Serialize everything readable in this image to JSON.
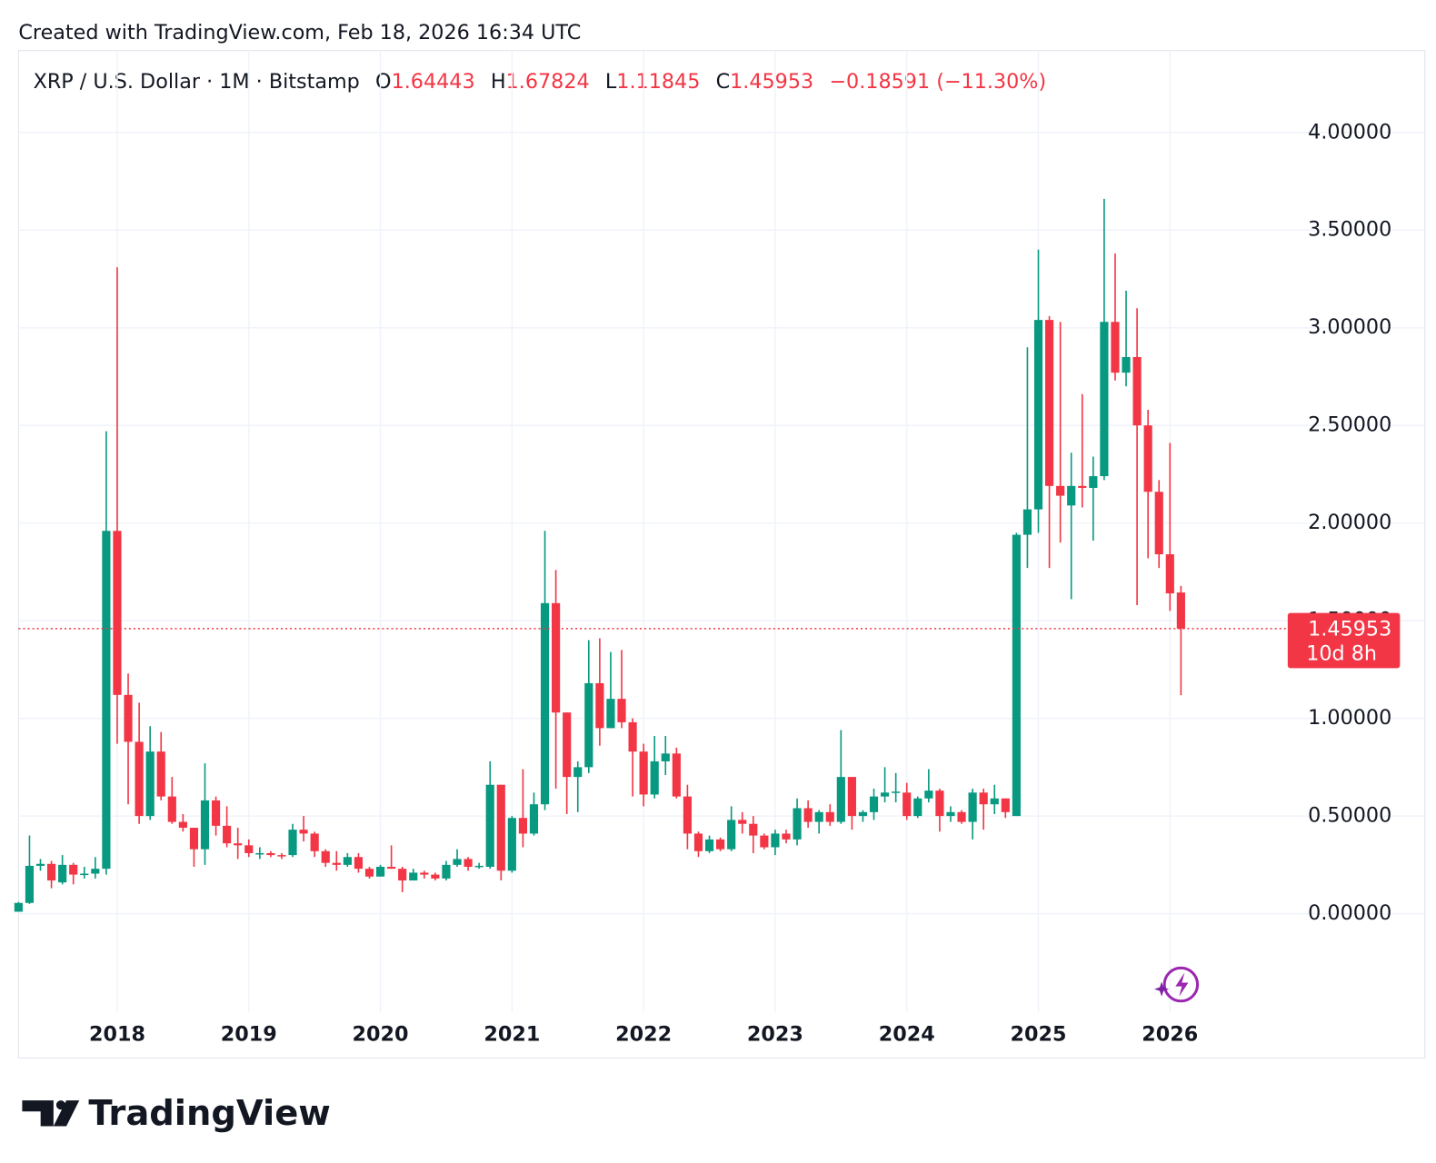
{
  "chart_data": {
    "type": "candlestick",
    "caption": "Created with TradingView.com, Feb 18, 2026 16:34 UTC",
    "title": "XRP / U.S. Dollar · 1M · Bitstamp",
    "ohlc_labels": [
      "O",
      "H",
      "L",
      "C"
    ],
    "change_label": "−0.18591 (−11.30%)",
    "countdown": "10d 8h",
    "brand": "TradingView",
    "up_color": "#089981",
    "down_color": "#f23645",
    "grid": true,
    "xlim": [
      0,
      115.4
    ],
    "xticks": [
      {
        "value": 9,
        "label": "2018"
      },
      {
        "value": 21,
        "label": "2019"
      },
      {
        "value": 33,
        "label": "2020"
      },
      {
        "value": 45,
        "label": "2021"
      },
      {
        "value": 57,
        "label": "2022"
      },
      {
        "value": 69,
        "label": "2023"
      },
      {
        "value": 81,
        "label": "2024"
      },
      {
        "value": 93,
        "label": "2025"
      },
      {
        "value": 105,
        "label": "2026"
      }
    ],
    "ylim": [
      -0.504,
      4.419
    ],
    "yticks": [
      {
        "value": 0,
        "label": "0.00000"
      },
      {
        "value": 0.5,
        "label": "0.50000"
      },
      {
        "value": 1,
        "label": "1.00000"
      },
      {
        "value": 1.5,
        "label": "1.50000"
      },
      {
        "value": 2,
        "label": "2.00000"
      },
      {
        "value": 2.5,
        "label": "2.50000"
      },
      {
        "value": 3,
        "label": "3.00000"
      },
      {
        "value": 3.5,
        "label": "3.50000"
      },
      {
        "value": 4,
        "label": "4.00000"
      }
    ],
    "open": [
      0.01,
      0.055,
      0.245,
      0.255,
      0.16,
      0.25,
      0.2,
      0.205,
      0.23,
      1.96,
      1.12,
      0.88,
      0.5,
      0.83,
      0.6,
      0.47,
      0.44,
      0.33,
      0.58,
      0.45,
      0.36,
      0.35,
      0.31,
      0.31,
      0.3,
      0.3,
      0.43,
      0.41,
      0.32,
      0.26,
      0.25,
      0.29,
      0.23,
      0.19,
      0.24,
      0.23,
      0.17,
      0.21,
      0.2,
      0.18,
      0.25,
      0.28,
      0.24,
      0.24,
      0.66,
      0.22,
      0.49,
      0.41,
      0.56,
      1.59,
      1.03,
      0.7,
      0.75,
      1.18,
      0.95,
      1.1,
      0.98,
      0.83,
      0.61,
      0.78,
      0.82,
      0.6,
      0.41,
      0.32,
      0.38,
      0.33,
      0.48,
      0.46,
      0.4,
      0.34,
      0.41,
      0.38,
      0.54,
      0.47,
      0.52,
      0.47,
      0.7,
      0.5,
      0.52,
      0.6,
      0.62,
      0.62,
      0.5,
      0.59,
      0.63,
      0.5,
      0.52,
      0.47,
      0.62,
      0.56,
      0.59,
      0.5,
      1.94,
      2.07,
      3.04,
      2.19,
      2.09,
      2.19,
      2.18,
      2.24,
      3.03,
      2.77,
      2.85,
      2.5,
      2.16,
      1.84,
      1.64443
    ],
    "high": [
      0.06,
      0.4,
      0.28,
      0.27,
      0.3,
      0.26,
      0.24,
      0.29,
      2.47,
      3.31,
      1.23,
      1.08,
      0.96,
      0.93,
      0.7,
      0.51,
      0.44,
      0.77,
      0.6,
      0.55,
      0.44,
      0.38,
      0.34,
      0.32,
      0.31,
      0.46,
      0.5,
      0.42,
      0.33,
      0.32,
      0.31,
      0.31,
      0.24,
      0.25,
      0.35,
      0.24,
      0.23,
      0.22,
      0.21,
      0.27,
      0.33,
      0.29,
      0.26,
      0.78,
      0.66,
      0.5,
      0.74,
      0.62,
      1.96,
      1.76,
      1.03,
      0.78,
      1.4,
      1.41,
      1.34,
      1.35,
      1.0,
      0.87,
      0.91,
      0.91,
      0.85,
      0.66,
      0.42,
      0.4,
      0.39,
      0.55,
      0.52,
      0.5,
      0.41,
      0.43,
      0.43,
      0.59,
      0.58,
      0.53,
      0.56,
      0.94,
      0.7,
      0.53,
      0.64,
      0.75,
      0.72,
      0.67,
      0.6,
      0.74,
      0.64,
      0.55,
      0.53,
      0.64,
      0.64,
      0.66,
      0.59,
      1.95,
      2.9,
      3.4,
      3.06,
      3.03,
      2.36,
      2.66,
      2.34,
      3.66,
      3.38,
      3.19,
      3.1,
      2.58,
      2.22,
      2.41,
      1.67824
    ],
    "low": [
      0.01,
      0.05,
      0.22,
      0.13,
      0.15,
      0.15,
      0.18,
      0.18,
      0.2,
      0.87,
      0.56,
      0.46,
      0.48,
      0.58,
      0.46,
      0.42,
      0.24,
      0.25,
      0.4,
      0.34,
      0.28,
      0.29,
      0.28,
      0.29,
      0.28,
      0.29,
      0.37,
      0.29,
      0.24,
      0.22,
      0.24,
      0.21,
      0.18,
      0.19,
      0.23,
      0.11,
      0.17,
      0.18,
      0.17,
      0.17,
      0.24,
      0.22,
      0.23,
      0.23,
      0.17,
      0.21,
      0.34,
      0.4,
      0.53,
      0.64,
      0.51,
      0.52,
      0.72,
      0.86,
      0.95,
      0.95,
      0.6,
      0.55,
      0.59,
      0.71,
      0.59,
      0.33,
      0.29,
      0.31,
      0.32,
      0.32,
      0.41,
      0.31,
      0.33,
      0.3,
      0.36,
      0.35,
      0.44,
      0.41,
      0.45,
      0.46,
      0.43,
      0.47,
      0.48,
      0.57,
      0.57,
      0.48,
      0.49,
      0.57,
      0.42,
      0.47,
      0.46,
      0.38,
      0.43,
      0.51,
      0.49,
      0.5,
      1.77,
      1.95,
      1.77,
      1.9,
      1.61,
      2.08,
      1.91,
      2.22,
      2.73,
      2.7,
      1.58,
      1.82,
      1.77,
      1.55,
      1.11845
    ],
    "close": [
      0.055,
      0.245,
      0.255,
      0.17,
      0.25,
      0.2,
      0.205,
      0.23,
      1.96,
      1.12,
      0.88,
      0.5,
      0.83,
      0.6,
      0.47,
      0.44,
      0.33,
      0.58,
      0.45,
      0.36,
      0.35,
      0.31,
      0.31,
      0.3,
      0.295,
      0.43,
      0.41,
      0.32,
      0.26,
      0.25,
      0.29,
      0.23,
      0.19,
      0.24,
      0.23,
      0.17,
      0.21,
      0.2,
      0.18,
      0.25,
      0.28,
      0.24,
      0.245,
      0.66,
      0.22,
      0.49,
      0.41,
      0.56,
      1.59,
      1.03,
      0.7,
      0.75,
      1.18,
      0.95,
      1.1,
      0.98,
      0.83,
      0.61,
      0.78,
      0.82,
      0.6,
      0.41,
      0.32,
      0.38,
      0.33,
      0.48,
      0.46,
      0.4,
      0.34,
      0.41,
      0.38,
      0.54,
      0.47,
      0.52,
      0.47,
      0.7,
      0.5,
      0.52,
      0.6,
      0.62,
      0.625,
      0.5,
      0.59,
      0.63,
      0.5,
      0.52,
      0.47,
      0.62,
      0.56,
      0.59,
      0.52,
      1.94,
      2.07,
      3.04,
      2.19,
      2.14,
      2.19,
      2.18,
      2.24,
      3.03,
      2.77,
      2.85,
      2.5,
      2.16,
      1.84,
      1.64,
      1.45953
    ]
  }
}
